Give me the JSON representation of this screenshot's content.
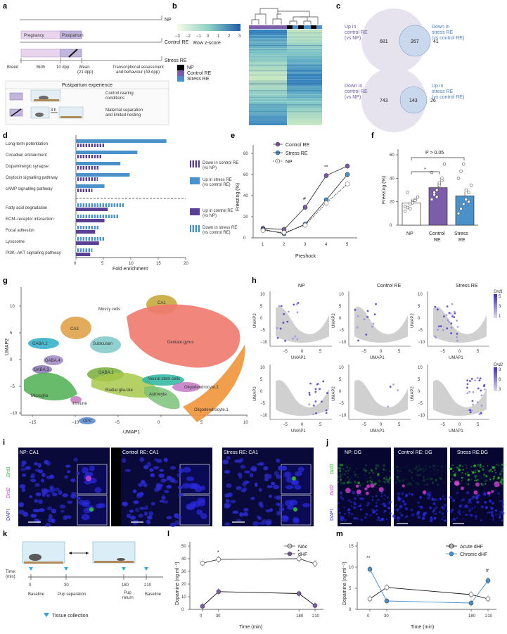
{
  "panel_a": {
    "tracks": [
      "NP",
      "Control RE",
      "Stress RE"
    ],
    "pregnancy": "Pregnancy",
    "postpartum": "Postpartum",
    "events": [
      "Breed",
      "Birth",
      "10 dpp",
      "Wean\n(21 dpp)",
      "Transcriptional assessment\nand behaviour (49 dpp)"
    ],
    "experience_title": "Postpartum experience",
    "control_text": "Control rearing\nconditions",
    "stress_text": "Maternal separation\nand limited nesting",
    "stress_time": "3 h"
  },
  "panel_b": {
    "scale_ticks": [
      "−3",
      "−2",
      "−1",
      "0",
      "1",
      "2",
      "3"
    ],
    "scale_label": "Row z-score",
    "legend": [
      {
        "name": "NP",
        "color": "#000000"
      },
      {
        "name": "Control RE",
        "color": "#7b5ea7"
      },
      {
        "name": "Stress RE",
        "color": "#4a90c9"
      }
    ]
  },
  "panel_c": {
    "venn1": {
      "left_label": "Up in\ncontrol RE\n(vs NP)",
      "right_label": "Down in\nstress RE\n(vs control RE)",
      "left": "681",
      "overlap": "267",
      "right": "41"
    },
    "venn2": {
      "left_label": "Down in\ncontrol RE\n(vs NP)",
      "right_label": "Up in\nstress RE\n(vs control RE)",
      "left": "743",
      "overlap": "143",
      "right": "26"
    }
  },
  "panel_d": {
    "xlabel": "Fold enrichment",
    "xticks": [
      "0",
      "5",
      "10",
      "15",
      "20"
    ],
    "pathways_top": [
      "Long-term potentiation",
      "Circadian entrainment",
      "Dopaminergic synapse",
      "Oxytocin signalling pathway",
      "cAMP signalling pathway"
    ],
    "pathways_bottom": [
      "Fatty acid degradation",
      "ECM–receptor interaction",
      "Focal adhesion",
      "Lysosome",
      "PI3K–AKT signalling pathway"
    ],
    "top_a": [
      16.5,
      11.2,
      8.1,
      9.8,
      5.2
    ],
    "top_b": [
      5.2,
      4.8,
      4.2,
      4.0,
      3.0
    ],
    "bot_a": [
      8.8,
      7.8,
      4.2,
      5.2,
      3.0
    ],
    "bot_b": [
      5.8,
      5.2,
      3.5,
      4.2,
      2.6
    ],
    "legend": [
      "Down in control RE\n(vs NP)",
      "Up in stress RE\n(vs control RE)",
      "Up in control RE\n(vs NP)",
      "Down in stress RE\n(vs control RE)"
    ]
  },
  "panel_e": {
    "ylabel": "Freezing (%)",
    "xlabel": "Preshock",
    "categories": [
      "1",
      "2",
      "3",
      "4",
      "5"
    ],
    "yticks": [
      "0",
      "20",
      "40",
      "60",
      "80"
    ],
    "series": [
      {
        "name": "Control RE",
        "values": [
          9,
          8,
          29,
          59,
          68
        ]
      },
      {
        "name": "Stress RE",
        "values": [
          8,
          4,
          13,
          36,
          60
        ]
      },
      {
        "name": "NP",
        "values": [
          7,
          5,
          12,
          33,
          51
        ]
      }
    ],
    "annotations": [
      {
        "x": "3",
        "label": "#"
      },
      {
        "x": "4",
        "label": "**"
      }
    ]
  },
  "panel_f": {
    "ylabel": "Freezing (%)",
    "categories": [
      "NP",
      "Control\nRE",
      "Stress\nRE"
    ],
    "values": [
      19,
      32,
      25
    ],
    "yticks": [
      "0",
      "20",
      "40",
      "60"
    ],
    "sig": "*",
    "p_label": "P > 0.05"
  },
  "panel_g": {
    "xlabel": "UMAP1",
    "ylabel": "UMAP2",
    "xticks": [
      "−15",
      "−10",
      "−5",
      "0",
      "5",
      "10"
    ],
    "yticks": [
      "10",
      "5",
      "0",
      "−5",
      "−10"
    ],
    "clusters": [
      "Mossy cells",
      "CA1",
      "CA3",
      "GABA.2",
      "Subiculum",
      "Dentate gyrus",
      "GABA.4",
      "GABA.3",
      "GABA.1",
      "Neural stem cells",
      "Oligodendrocyte.2",
      "Radial glia-like",
      "Astrocyte",
      "Microglia",
      "Immune",
      "Oligodendrocyte.1",
      "OPC"
    ]
  },
  "panel_h": {
    "titles": [
      "NP",
      "Control RE",
      "Stress RE"
    ],
    "xlabel": "UMAP1",
    "ylabel": "UMAP2",
    "xticks": [
      "−5",
      "0",
      "5"
    ],
    "yticks": [
      "10",
      "5",
      "0",
      "−5",
      "−10"
    ],
    "gene1": "Drd1",
    "gene1_ticks": [
      "5",
      "3",
      "1"
    ],
    "gene2": "Drd2",
    "gene2_ticks": [
      "9",
      "6",
      "3"
    ]
  },
  "panel_i": {
    "titles": [
      "NP: CA1",
      "Control RE: CA1",
      "Stress RE: CA1"
    ],
    "labels": [
      "Drd1",
      "Drd2",
      "DAPI"
    ]
  },
  "panel_j": {
    "titles": [
      "NP: DG",
      "Control RE: DG",
      "Stress RE:DG"
    ],
    "labels": [
      "Drd1",
      "Drd2",
      "DAPI"
    ]
  },
  "panel_k": {
    "time_label": "Time:\n(min)",
    "times": [
      "0",
      "30",
      "180",
      "210"
    ],
    "phases": [
      "Baseline",
      "Pup separation",
      "Pup\nreturn",
      "Baseline"
    ],
    "legend": "Tissue collection"
  },
  "panel_l": {
    "ylabel": "Dopamine (ng ml⁻¹)",
    "xlabel": "Time (min)",
    "x": [
      0,
      30,
      180,
      210
    ],
    "yticks": [
      "0",
      "10",
      "20",
      "30",
      "40",
      "50"
    ],
    "series": [
      {
        "name": "NAc",
        "values": [
          36.5,
          39.5,
          40,
          36
        ]
      },
      {
        "name": "dHF",
        "values": [
          2.5,
          14,
          12.5,
          3
        ]
      }
    ],
    "annotations": [
      "*",
      "*"
    ]
  },
  "panel_m": {
    "ylabel": "Dopamine (ng ml⁻¹)",
    "xlabel": "Time (min)",
    "x": [
      0,
      30,
      180,
      210
    ],
    "yticks": [
      "0",
      "5",
      "10",
      "15"
    ],
    "series": [
      {
        "name": "Acute dHF",
        "values": [
          2.5,
          5.2,
          3.5,
          2.5
        ]
      },
      {
        "name": "Chronic dHF",
        "values": [
          9.5,
          2.0,
          1.5,
          6.8
        ]
      }
    ],
    "annotations": [
      "**",
      "#"
    ]
  },
  "colors": {
    "purple": "#7b5ea7",
    "blue": "#4a90c9",
    "lavender": "#c8bde0",
    "grey": "#9a9a9a"
  }
}
